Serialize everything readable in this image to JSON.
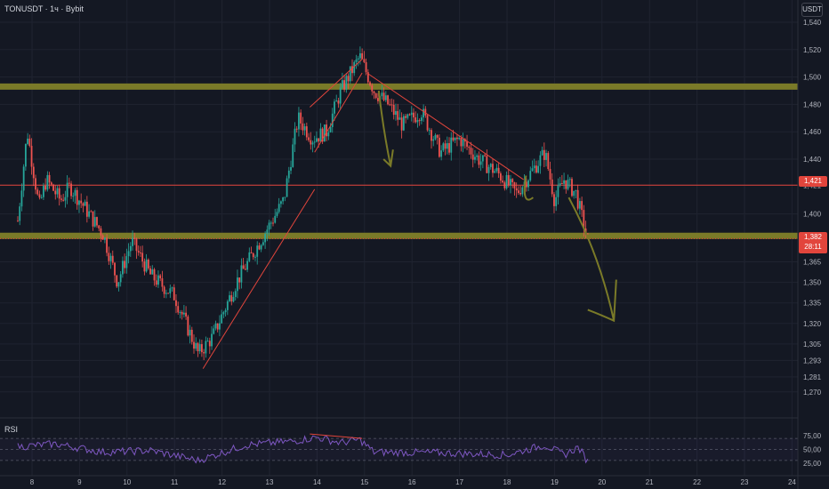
{
  "header": {
    "title": "TONUSDT · 1ч · Bybit",
    "currency": "USDT",
    "rsi_label": "RSI"
  },
  "tags": {
    "resistance": "1,421",
    "last_price": "1,382",
    "countdown": "28:11"
  },
  "colors": {
    "bg": "#141823",
    "up": "#26a69a",
    "down": "#ef5350",
    "zone": "#7a7a28",
    "red_line": "#e2453c",
    "annot": "#7a7a28",
    "rsi": "#7e57c2",
    "grid": "#1f2330"
  },
  "chart_data": [
    {
      "type": "candlestick",
      "title": "TONUSDT · 1ч · Bybit",
      "y_axis_ticks": [
        "1,540",
        "1,520",
        "1,500",
        "1,480",
        "1,460",
        "1,440",
        "1,421",
        "1,400",
        "1,382",
        "1,365",
        "1,350",
        "1,335",
        "1,320",
        "1,305",
        "1,293",
        "1,281",
        "1,270"
      ],
      "x_axis_ticks": [
        "8",
        "9",
        "10",
        "11",
        "12",
        "13",
        "14",
        "15",
        "16",
        "17",
        "18",
        "19",
        "20",
        "21",
        "22",
        "23",
        "24"
      ],
      "price_path": [
        {
          "day": 7.7,
          "price": 1.395
        },
        {
          "day": 7.9,
          "price": 1.46
        },
        {
          "day": 8.15,
          "price": 1.405
        },
        {
          "day": 8.3,
          "price": 1.425
        },
        {
          "day": 8.6,
          "price": 1.41
        },
        {
          "day": 8.8,
          "price": 1.42
        },
        {
          "day": 9.2,
          "price": 1.4
        },
        {
          "day": 9.5,
          "price": 1.385
        },
        {
          "day": 9.8,
          "price": 1.35
        },
        {
          "day": 10.1,
          "price": 1.38
        },
        {
          "day": 10.5,
          "price": 1.355
        },
        {
          "day": 11.0,
          "price": 1.34
        },
        {
          "day": 11.5,
          "price": 1.298
        },
        {
          "day": 11.8,
          "price": 1.31
        },
        {
          "day": 12.3,
          "price": 1.35
        },
        {
          "day": 12.8,
          "price": 1.38
        },
        {
          "day": 13.3,
          "price": 1.41
        },
        {
          "day": 13.6,
          "price": 1.47
        },
        {
          "day": 13.9,
          "price": 1.455
        },
        {
          "day": 14.2,
          "price": 1.46
        },
        {
          "day": 14.5,
          "price": 1.49
        },
        {
          "day": 14.9,
          "price": 1.515
        },
        {
          "day": 15.2,
          "price": 1.49
        },
        {
          "day": 15.5,
          "price": 1.48
        },
        {
          "day": 15.8,
          "price": 1.465
        },
        {
          "day": 16.2,
          "price": 1.475
        },
        {
          "day": 16.6,
          "price": 1.445
        },
        {
          "day": 17.0,
          "price": 1.455
        },
        {
          "day": 17.4,
          "price": 1.44
        },
        {
          "day": 17.8,
          "price": 1.43
        },
        {
          "day": 18.2,
          "price": 1.415
        },
        {
          "day": 18.5,
          "price": 1.43
        },
        {
          "day": 18.8,
          "price": 1.445
        },
        {
          "day": 19.0,
          "price": 1.41
        },
        {
          "day": 19.2,
          "price": 1.425
        },
        {
          "day": 19.45,
          "price": 1.415
        },
        {
          "day": 19.7,
          "price": 1.381
        }
      ],
      "horizontal_levels": {
        "resistance_zone": 1.493,
        "red_line": 1.421,
        "support_zone": 1.384
      },
      "last_price": 1.382,
      "type_note": "candlestick with drawn trendlines, zones and arrows"
    },
    {
      "type": "line",
      "title": "RSI",
      "y_axis_ticks": [
        "75,00",
        "50,00",
        "25,00"
      ],
      "levels": [
        70,
        50,
        30
      ],
      "rsi_path": [
        {
          "day": 7.7,
          "value": 55
        },
        {
          "day": 8.5,
          "value": 60
        },
        {
          "day": 9.5,
          "value": 45
        },
        {
          "day": 10.5,
          "value": 48
        },
        {
          "day": 11.5,
          "value": 30
        },
        {
          "day": 12.5,
          "value": 58
        },
        {
          "day": 13.5,
          "value": 65
        },
        {
          "day": 14.0,
          "value": 72
        },
        {
          "day": 14.5,
          "value": 62
        },
        {
          "day": 14.9,
          "value": 68
        },
        {
          "day": 15.2,
          "value": 45
        },
        {
          "day": 16.5,
          "value": 44
        },
        {
          "day": 18.0,
          "value": 40
        },
        {
          "day": 18.8,
          "value": 58
        },
        {
          "day": 19.2,
          "value": 40
        },
        {
          "day": 19.5,
          "value": 54
        },
        {
          "day": 19.7,
          "value": 28
        }
      ]
    }
  ]
}
